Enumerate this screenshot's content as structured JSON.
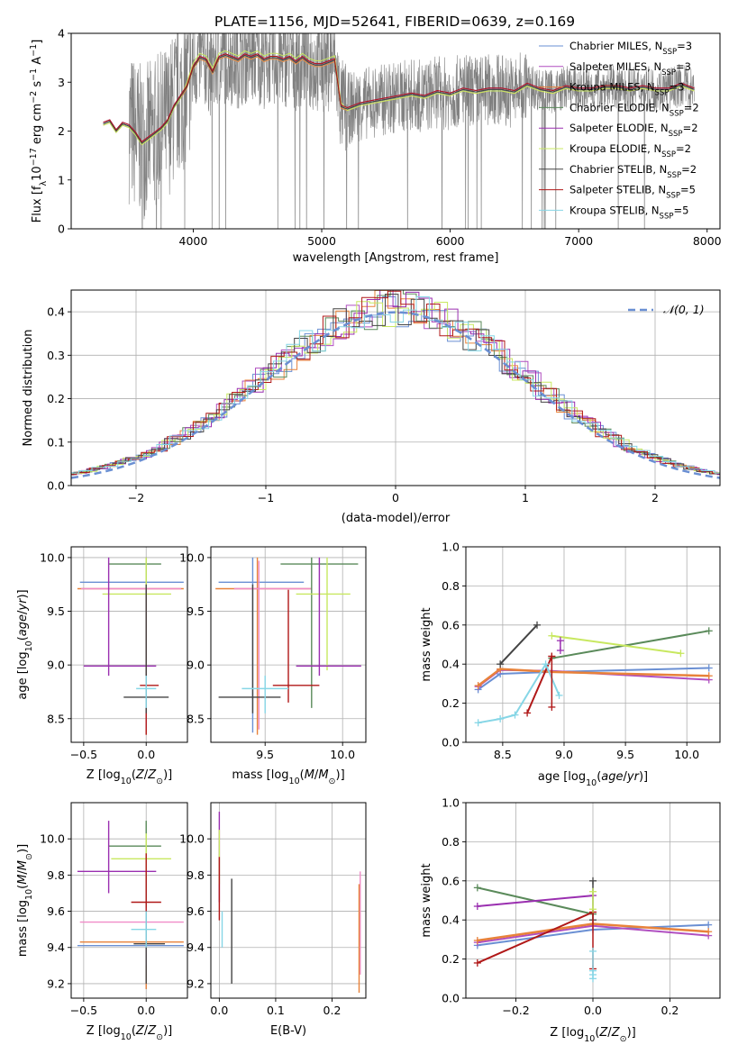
{
  "figure_title": "PLATE=1156, MJD=52641, FIBERID=0639, z=0.169",
  "colors": {
    "chabrier_miles": "#6a8fd3",
    "salpeter_miles": "#b04fc0",
    "kroupa_miles": "#e8823a",
    "chabrier_elodie": "#5a8a5a",
    "salpeter_elodie": "#9a2fb0",
    "kroupa_elodie": "#c8e860",
    "chabrier_stelib": "#444444",
    "salpeter_stelib": "#b01818",
    "kroupa_stelib": "#86d6e6",
    "pink": "#f08cc8",
    "data": "#808080",
    "grid": "#b0b0b0"
  },
  "chart_data": [
    {
      "id": "spectrum",
      "type": "line",
      "xlabel": "wavelength [Angstrom, rest frame]",
      "ylabel": "Flux [f_λ 10^-17 erg cm^-2 s^-1 A^-1]",
      "ylabel_main": "Flux [f",
      "ylabel_sub": "λ",
      "ylabel_rest": "10",
      "ylabel_sup1": "−17",
      "ylabel_mid": " erg cm",
      "ylabel_sup2": "−2",
      "ylabel_mid2": " s",
      "ylabel_sup3": "−1",
      "ylabel_mid3": " A",
      "ylabel_sup4": "−1",
      "ylabel_end": "]",
      "xlim": [
        3050,
        8100
      ],
      "ylim": [
        0,
        4
      ],
      "xticks": [
        4000,
        5000,
        6000,
        7000,
        8000
      ],
      "yticks": [
        0,
        1,
        2,
        3,
        4
      ],
      "legend_position": "right",
      "legend": [
        {
          "label": "Chabrier MILES, N",
          "sub": "SSP",
          "tail": "=3",
          "color_key": "chabrier_miles"
        },
        {
          "label": "Salpeter MILES, N",
          "sub": "SSP",
          "tail": "=3",
          "color_key": "salpeter_miles"
        },
        {
          "label": "Kroupa MILES, N",
          "sub": "SSP",
          "tail": "=3",
          "color_key": "kroupa_miles"
        },
        {
          "label": "Chabrier ELODIE, N",
          "sub": "SSP",
          "tail": "=2",
          "color_key": "chabrier_elodie"
        },
        {
          "label": "Salpeter ELODIE, N",
          "sub": "SSP",
          "tail": "=2",
          "color_key": "salpeter_elodie"
        },
        {
          "label": "Kroupa ELODIE, N",
          "sub": "SSP",
          "tail": "=2",
          "color_key": "kroupa_elodie"
        },
        {
          "label": "Chabrier STELIB, N",
          "sub": "SSP",
          "tail": "=2",
          "color_key": "chabrier_stelib"
        },
        {
          "label": "Salpeter STELIB, N",
          "sub": "SSP",
          "tail": "=5",
          "color_key": "salpeter_stelib"
        },
        {
          "label": "Kroupa STELIB, N",
          "sub": "SSP",
          "tail": "=5",
          "color_key": "kroupa_stelib"
        }
      ],
      "model_x": [
        3300,
        3350,
        3400,
        3450,
        3500,
        3550,
        3600,
        3650,
        3700,
        3750,
        3800,
        3850,
        3900,
        3950,
        4000,
        4050,
        4100,
        4150,
        4200,
        4250,
        4300,
        4350,
        4400,
        4450,
        4500,
        4550,
        4600,
        4650,
        4700,
        4750,
        4800,
        4850,
        4900,
        4950,
        5000,
        5050,
        5100,
        5150,
        5200,
        5250,
        5300,
        5400,
        5500,
        5600,
        5700,
        5800,
        5900,
        6000,
        6100,
        6200,
        6300,
        6400,
        6500,
        6600,
        6700,
        6800,
        6900,
        7000,
        7100,
        7200,
        7300,
        7400,
        7500,
        7600,
        7700,
        7800,
        7900
      ],
      "model_y": [
        2.15,
        2.2,
        2.0,
        2.15,
        2.1,
        1.95,
        1.75,
        1.85,
        1.95,
        2.05,
        2.2,
        2.5,
        2.7,
        2.9,
        3.3,
        3.5,
        3.45,
        3.2,
        3.5,
        3.55,
        3.5,
        3.45,
        3.55,
        3.5,
        3.55,
        3.45,
        3.5,
        3.5,
        3.45,
        3.5,
        3.4,
        3.5,
        3.4,
        3.35,
        3.35,
        3.4,
        3.45,
        2.5,
        2.45,
        2.5,
        2.55,
        2.6,
        2.65,
        2.7,
        2.75,
        2.7,
        2.8,
        2.75,
        2.85,
        2.8,
        2.85,
        2.85,
        2.8,
        2.95,
        2.85,
        2.8,
        2.9,
        2.85,
        2.85,
        2.9,
        2.9,
        2.85,
        2.9,
        2.85,
        2.85,
        2.95,
        2.85
      ]
    },
    {
      "id": "residuals",
      "type": "step",
      "xlabel": "(data-model)/error",
      "ylabel": "Normed distribution",
      "xlim": [
        -2.5,
        2.5
      ],
      "ylim": [
        0,
        0.45
      ],
      "xticks": [
        -2,
        -1,
        0,
        1,
        2
      ],
      "yticks": [
        0.0,
        0.1,
        0.2,
        0.3,
        0.4
      ],
      "legend_position": "top-right",
      "normal_label": "𝒩(0, 1)"
    },
    {
      "id": "age_vs_z",
      "type": "errorbar",
      "xlabel": "Z [log10(Z/Z⊙)]",
      "ylabel": "age [log10(age/yr)]",
      "xlim": [
        -0.6,
        0.33
      ],
      "ylim": [
        8.28,
        10.1
      ],
      "xticks": [
        -0.5,
        0.0
      ],
      "yticks": [
        8.5,
        9.0,
        9.5,
        10.0
      ],
      "points": [
        {
          "c": "chabrier_miles",
          "x": 0.0,
          "y": 9.77,
          "xe": [
            -0.53,
            0.3
          ],
          "ye": [
            8.37,
            10.0
          ]
        },
        {
          "c": "kroupa_miles",
          "x": 0.0,
          "y": 9.71,
          "xe": [
            -0.55,
            0.3
          ],
          "ye": [
            8.35,
            10.0
          ]
        },
        {
          "c": "pink",
          "x": 0.0,
          "y": 9.71,
          "xe": [
            -0.52,
            0.28
          ],
          "ye": [
            8.4,
            9.97
          ]
        },
        {
          "c": "chabrier_elodie",
          "x": 0.0,
          "y": 9.94,
          "xe": [
            -0.3,
            0.12
          ],
          "ye": [
            8.6,
            10.0
          ]
        },
        {
          "c": "kroupa_elodie",
          "x": 0.0,
          "y": 9.66,
          "xe": [
            -0.35,
            0.2
          ],
          "ye": [
            8.95,
            10.0
          ]
        },
        {
          "c": "salpeter_elodie",
          "x": -0.3,
          "y": 8.99,
          "xe": [
            -0.5,
            0.08
          ],
          "ye": [
            8.9,
            10.0
          ]
        },
        {
          "c": "salpeter_stelib",
          "x": 0.0,
          "y": 8.81,
          "xe": [
            -0.05,
            0.1
          ],
          "ye": [
            8.35,
            9.7
          ]
        },
        {
          "c": "chabrier_stelib",
          "x": 0.0,
          "y": 8.7,
          "xe": [
            -0.18,
            0.18
          ],
          "ye": [
            8.55,
            9.75
          ]
        },
        {
          "c": "kroupa_stelib",
          "x": 0.0,
          "y": 8.78,
          "xe": [
            -0.08,
            0.08
          ],
          "ye": [
            8.6,
            8.9
          ]
        }
      ]
    },
    {
      "id": "age_vs_mass",
      "type": "errorbar",
      "xlabel": "mass [log10(M/M⊙)]",
      "xlim": [
        9.15,
        10.15
      ],
      "ylim": [
        8.28,
        10.1
      ],
      "xticks": [
        9.5,
        10.0
      ],
      "yticks": [
        8.5,
        9.0,
        9.5,
        10.0
      ],
      "points": [
        {
          "c": "chabrier_miles",
          "x": 9.42,
          "y": 9.77,
          "xe": [
            9.2,
            9.75
          ],
          "ye": [
            8.37,
            10.0
          ]
        },
        {
          "c": "kroupa_miles",
          "x": 9.45,
          "y": 9.71,
          "xe": [
            9.18,
            9.8
          ],
          "ye": [
            8.35,
            10.0
          ]
        },
        {
          "c": "pink",
          "x": 9.46,
          "y": 9.71,
          "xe": [
            9.3,
            9.8
          ],
          "ye": [
            8.4,
            9.97
          ]
        },
        {
          "c": "chabrier_elodie",
          "x": 9.8,
          "y": 9.94,
          "xe": [
            9.6,
            10.1
          ],
          "ye": [
            8.6,
            10.0
          ]
        },
        {
          "c": "kroupa_elodie",
          "x": 9.9,
          "y": 9.66,
          "xe": [
            9.7,
            10.05
          ],
          "ye": [
            8.95,
            10.0
          ]
        },
        {
          "c": "salpeter_elodie",
          "x": 9.85,
          "y": 8.99,
          "xe": [
            9.7,
            10.12
          ],
          "ye": [
            8.9,
            10.0
          ]
        },
        {
          "c": "salpeter_stelib",
          "x": 9.65,
          "y": 8.81,
          "xe": [
            9.55,
            9.85
          ],
          "ye": [
            8.65,
            9.7
          ]
        },
        {
          "c": "chabrier_stelib",
          "x": 9.42,
          "y": 8.7,
          "xe": [
            9.2,
            9.6
          ],
          "ye": [
            8.55,
            9.75
          ]
        },
        {
          "c": "kroupa_stelib",
          "x": 9.5,
          "y": 8.78,
          "xe": [
            9.35,
            9.65
          ],
          "ye": [
            8.55,
            8.9
          ]
        }
      ]
    },
    {
      "id": "weight_vs_age",
      "type": "line",
      "xlabel": "age [log10(age/yr)]",
      "ylabel": "mass weight",
      "xlim": [
        8.2,
        10.27
      ],
      "ylim": [
        0,
        1
      ],
      "xticks": [
        8.5,
        9.0,
        9.5,
        10.0
      ],
      "yticks": [
        0.0,
        0.2,
        0.4,
        0.6,
        0.8,
        1.0
      ],
      "series": [
        {
          "c": "chabrier_miles",
          "x": [
            8.3,
            8.48,
            8.9,
            10.18
          ],
          "y": [
            0.27,
            0.35,
            0.36,
            0.38
          ],
          "w": 2
        },
        {
          "c": "salpeter_miles",
          "x": [
            8.3,
            8.48,
            8.9,
            10.18
          ],
          "y": [
            0.285,
            0.37,
            0.365,
            0.32
          ],
          "w": 2
        },
        {
          "c": "kroupa_miles",
          "x": [
            8.3,
            8.48,
            8.9,
            10.18
          ],
          "y": [
            0.29,
            0.375,
            0.36,
            0.34
          ],
          "w": 2.5
        },
        {
          "c": "chabrier_elodie",
          "x": [
            8.9,
            10.18
          ],
          "y": [
            0.43,
            0.57
          ],
          "w": 2
        },
        {
          "c": "kroupa_elodie",
          "x": [
            8.9,
            9.95
          ],
          "y": [
            0.545,
            0.455
          ],
          "w": 2
        },
        {
          "c": "chabrier_stelib",
          "x": [
            8.48,
            8.78
          ],
          "y": [
            0.4,
            0.6
          ],
          "w": 2
        },
        {
          "c": "salpeter_stelib",
          "x": [
            8.7,
            8.9
          ],
          "y": [
            0.15,
            0.44
          ],
          "w": 2
        },
        {
          "c": "kroupa_stelib",
          "x": [
            8.3,
            8.48,
            8.6,
            8.85,
            8.96
          ],
          "y": [
            0.1,
            0.12,
            0.14,
            0.4,
            0.24
          ],
          "w": 2
        }
      ],
      "markers": [
        {
          "c": "salpeter_elodie",
          "x": 8.97,
          "y": [
            0.47,
            0.52
          ]
        },
        {
          "c": "salpeter_stelib",
          "x": 8.9,
          "y": [
            0.18,
            0.44
          ]
        }
      ]
    },
    {
      "id": "mass_vs_z",
      "type": "errorbar",
      "xlabel": "Z [log10(Z/Z⊙)]",
      "ylabel": "mass [log10(M/M⊙)]",
      "xlim": [
        -0.6,
        0.33
      ],
      "ylim": [
        9.12,
        10.2
      ],
      "xticks": [
        -0.5,
        0.0
      ],
      "yticks": [
        9.2,
        9.4,
        9.6,
        9.8,
        10.0
      ],
      "points": [
        {
          "c": "chabrier_miles",
          "x": 0.0,
          "y": 9.41,
          "xe": [
            -0.55,
            0.3
          ],
          "ye": [
            9.17,
            9.5
          ]
        },
        {
          "c": "kroupa_miles",
          "x": 0.0,
          "y": 9.43,
          "xe": [
            -0.53,
            0.3
          ],
          "ye": [
            9.17,
            9.55
          ]
        },
        {
          "c": "pink",
          "x": 0.0,
          "y": 9.54,
          "xe": [
            -0.53,
            0.3
          ],
          "ye": [
            9.3,
            9.66
          ]
        },
        {
          "c": "chabrier_elodie",
          "x": 0.0,
          "y": 9.96,
          "xe": [
            -0.3,
            0.12
          ],
          "ye": [
            9.62,
            10.1
          ]
        },
        {
          "c": "kroupa_elodie",
          "x": 0.0,
          "y": 9.89,
          "xe": [
            -0.28,
            0.2
          ],
          "ye": [
            9.8,
            10.03
          ]
        },
        {
          "c": "salpeter_elodie",
          "x": -0.3,
          "y": 9.82,
          "xe": [
            -0.55,
            0.08
          ],
          "ye": [
            9.7,
            10.1
          ]
        },
        {
          "c": "salpeter_stelib",
          "x": 0.0,
          "y": 9.65,
          "xe": [
            -0.12,
            0.12
          ],
          "ye": [
            9.4,
            9.92
          ]
        },
        {
          "c": "chabrier_stelib",
          "x": 0.0,
          "y": 9.42,
          "xe": [
            -0.1,
            0.15
          ],
          "ye": [
            9.2,
            9.6
          ]
        },
        {
          "c": "kroupa_stelib",
          "x": 0.0,
          "y": 9.5,
          "xe": [
            -0.12,
            0.08
          ],
          "ye": [
            9.4,
            9.6
          ]
        }
      ]
    },
    {
      "id": "mass_vs_ebv",
      "type": "errorbar",
      "xlabel": "E(B-V)",
      "xlim": [
        -0.015,
        0.26
      ],
      "ylim": [
        9.12,
        10.2
      ],
      "xticks": [
        0.0,
        0.1,
        0.2
      ],
      "yticks": [
        9.2,
        9.4,
        9.6,
        9.8,
        10.0
      ],
      "points": [
        {
          "c": "salpeter_elodie",
          "x": 0.0,
          "y": 9.82,
          "xe": [
            0.0,
            0.0
          ],
          "ye": [
            9.65,
            10.15
          ]
        },
        {
          "c": "kroupa_elodie",
          "x": 0.0,
          "y": 9.89,
          "xe": [
            0.0,
            0.0
          ],
          "ye": [
            9.75,
            10.05
          ]
        },
        {
          "c": "salpeter_stelib",
          "x": 0.0,
          "y": 9.65,
          "xe": [
            0.0,
            0.0
          ],
          "ye": [
            9.55,
            9.9
          ]
        },
        {
          "c": "kroupa_stelib",
          "x": 0.005,
          "y": 9.5,
          "xe": [
            0.005,
            0.005
          ],
          "ye": [
            9.4,
            9.6
          ]
        },
        {
          "c": "chabrier_stelib",
          "x": 0.022,
          "y": 9.45,
          "xe": [
            0.022,
            0.022
          ],
          "ye": [
            9.2,
            9.78
          ]
        },
        {
          "c": "pink",
          "x": 0.25,
          "y": 9.55,
          "xe": [
            0.25,
            0.25
          ],
          "ye": [
            9.25,
            9.82
          ]
        },
        {
          "c": "kroupa_miles",
          "x": 0.248,
          "y": 9.43,
          "xe": [
            0.248,
            0.248
          ],
          "ye": [
            9.15,
            9.75
          ]
        }
      ]
    },
    {
      "id": "weight_vs_z",
      "type": "line",
      "xlabel": "Z [log10(Z/Z⊙)]",
      "ylabel": "mass weight",
      "xlim": [
        -0.33,
        0.33
      ],
      "ylim": [
        0,
        1
      ],
      "xticks": [
        -0.2,
        0.0,
        0.2
      ],
      "yticks": [
        0.0,
        0.2,
        0.4,
        0.6,
        0.8,
        1.0
      ],
      "series": [
        {
          "c": "chabrier_miles",
          "x": [
            -0.3,
            0.0,
            0.3
          ],
          "y": [
            0.27,
            0.35,
            0.375
          ],
          "w": 2
        },
        {
          "c": "salpeter_miles",
          "x": [
            -0.3,
            0.0,
            0.3
          ],
          "y": [
            0.285,
            0.37,
            0.32
          ],
          "w": 2
        },
        {
          "c": "kroupa_miles",
          "x": [
            -0.3,
            0.0,
            0.3
          ],
          "y": [
            0.295,
            0.38,
            0.34
          ],
          "w": 2.5
        },
        {
          "c": "chabrier_elodie",
          "x": [
            -0.3,
            0.0
          ],
          "y": [
            0.565,
            0.43
          ],
          "w": 2
        },
        {
          "c": "salpeter_elodie",
          "x": [
            -0.3,
            0.0
          ],
          "y": [
            0.47,
            0.525
          ],
          "w": 2
        },
        {
          "c": "salpeter_stelib",
          "x": [
            -0.3,
            0.0
          ],
          "y": [
            0.18,
            0.44
          ],
          "w": 2
        }
      ],
      "markers": [
        {
          "c": "chabrier_stelib",
          "x": 0.0,
          "y": [
            0.4,
            0.6
          ]
        },
        {
          "c": "salpeter_stelib",
          "x": 0.0,
          "y": [
            0.15,
            0.44
          ]
        },
        {
          "c": "kroupa_stelib",
          "x": 0.0,
          "y": [
            0.1,
            0.12,
            0.14,
            0.24
          ]
        },
        {
          "c": "kroupa_elodie",
          "x": 0.0,
          "y": [
            0.455,
            0.545
          ]
        }
      ]
    }
  ]
}
